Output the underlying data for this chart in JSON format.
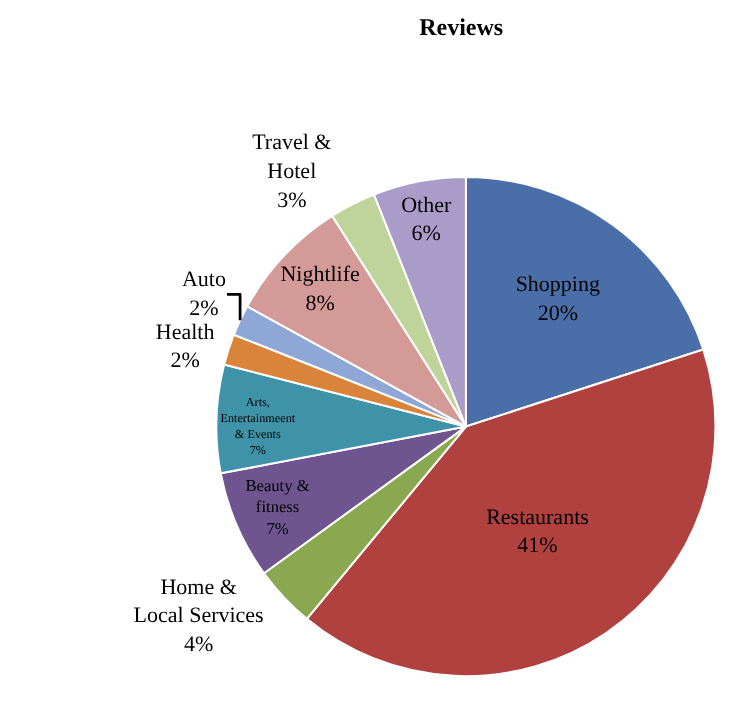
{
  "chart_data": {
    "type": "pie",
    "title": "Reviews",
    "categories": [
      "Shopping",
      "Restaurants",
      "Home & Local Services",
      "Beauty & fitness",
      "Arts, Entertainmeent & Events",
      "Health",
      "Auto",
      "Nightlife",
      "Travel & Hotel",
      "Other"
    ],
    "values": [
      20,
      41,
      4,
      7,
      7,
      2,
      2,
      8,
      3,
      6
    ],
    "value_labels": [
      "20%",
      "41%",
      "4%",
      "7%",
      "7%",
      "2%",
      "2%",
      "8%",
      "3%",
      "6%"
    ],
    "colors": [
      "#4a6fa8",
      "#b0413e",
      "#8aa84f",
      "#6e5590",
      "#3f93a8",
      "#d9843a",
      "#8fa7d6",
      "#d49a98",
      "#bfd49a",
      "#aa9cc8"
    ],
    "legend": false
  }
}
